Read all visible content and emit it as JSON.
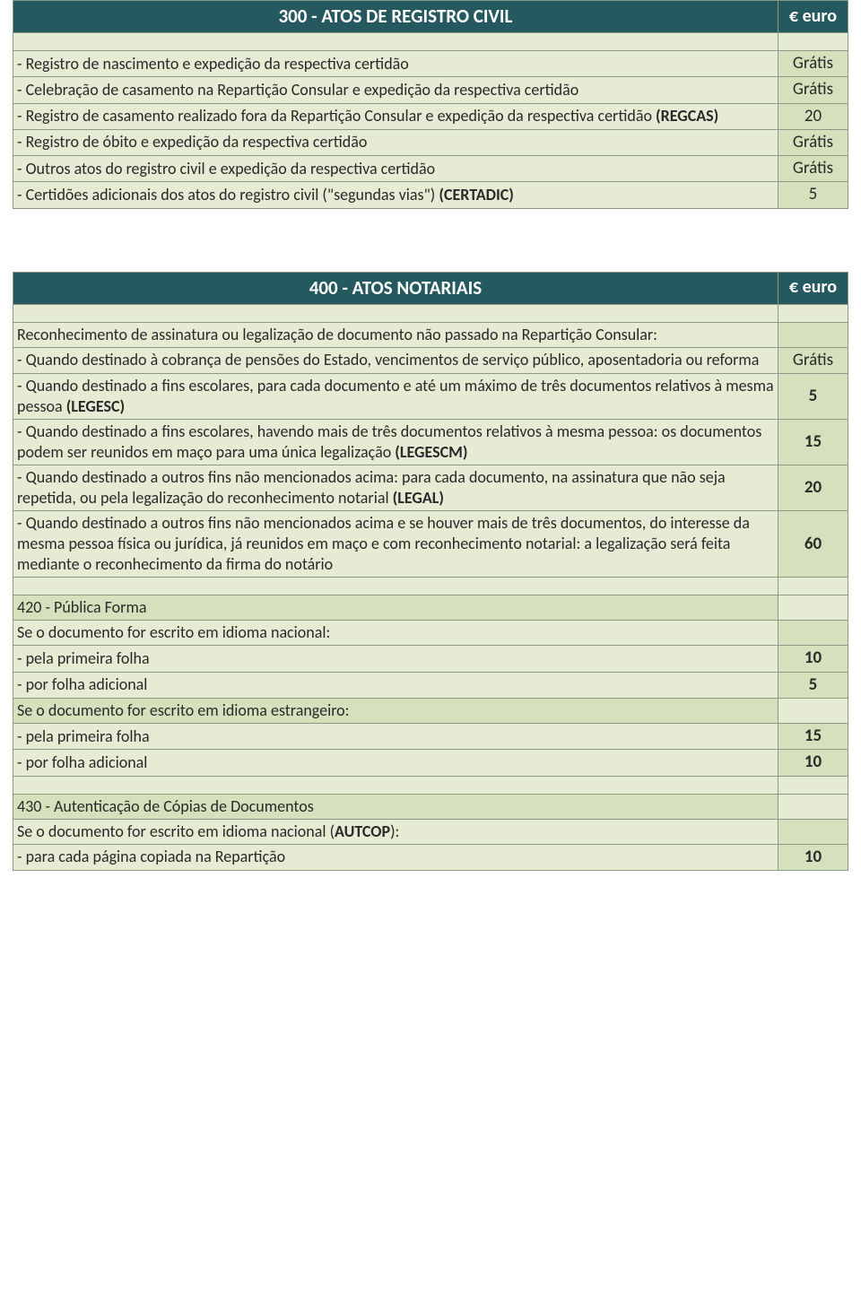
{
  "t300": {
    "title": "300 - ATOS DE REGISTRO CIVIL",
    "currency": "€ euro",
    "rows": [
      {
        "desc": "- Registro de nascimento e expedição da respectiva certidão",
        "val": "Grátis"
      },
      {
        "desc": "- Celebração de casamento na Repartição Consular e expedição da respectiva certidão",
        "val": "Grátis"
      },
      {
        "desc_pre": "- Registro de casamento realizado fora da Repartição Consular e expedição da respectiva certidão ",
        "desc_b": "(REGCAS)",
        "val": "20"
      },
      {
        "desc": "- Registro de óbito e expedição da respectiva certidão",
        "val": "Grátis"
      },
      {
        "desc": "- Outros atos do registro civil e expedição da respectiva certidão",
        "val": "Grátis"
      },
      {
        "desc_pre": "- Certidões adicionais dos atos do registro civil (\"segundas vias\") ",
        "desc_b": "(CERTADIC)",
        "val": "5"
      }
    ]
  },
  "t400": {
    "title": "400 - ATOS NOTARIAIS",
    "currency": "€ euro",
    "intro": "Reconhecimento de assinatura ou legalização de documento não passado na Repartição Consular:",
    "rows": [
      {
        "desc": "- Quando destinado à cobrança de pensões do Estado, vencimentos de serviço público, aposentadoria ou reforma",
        "val": "Grátis"
      },
      {
        "desc_pre": "- Quando destinado a fins escolares, para cada documento e até um máximo de três documentos relativos à mesma pessoa ",
        "desc_b": "(LEGESC)",
        "val": "5"
      },
      {
        "desc_pre": "- Quando destinado a fins escolares, havendo mais de três documentos relativos à mesma pessoa: os documentos podem ser reunidos em maço para uma única legalização ",
        "desc_b": "(LEGESCM)",
        "val": "15"
      },
      {
        "desc_pre": "- Quando destinado a outros fins não mencionados acima: para cada documento, na assinatura que não seja repetida, ou pela legalização do reconhecimento notarial ",
        "desc_b": "(LEGAL)",
        "val": "20"
      },
      {
        "desc": "- Quando destinado a outros fins não mencionados acima e se houver mais de três documentos, do interesse da mesma pessoa física ou jurídica, já reunidos em maço e com reconhecimento notarial: a legalização será feita mediante o reconhecimento da firma do notário",
        "val": "60"
      }
    ],
    "s420": {
      "heading": "420 - Pública Forma",
      "nat_label": "Se o documento for escrito em idioma nacional:",
      "r1": {
        "desc": "- pela primeira folha",
        "val": "10"
      },
      "r2": {
        "desc": "- por folha adicional",
        "val": "5"
      },
      "for_label": "Se o documento for escrito em idioma estrangeiro:",
      "r3": {
        "desc": "- pela primeira folha",
        "val": "15"
      },
      "r4": {
        "desc": "- por folha adicional",
        "val": "10"
      }
    },
    "s430": {
      "heading": "430 - Autenticação de Cópias de Documentos",
      "nat_pre": "Se o documento for escrito em idioma nacional (",
      "nat_b": "AUTCOP",
      "nat_post": "):",
      "r1": {
        "desc": "- para cada página copiada na Repartição",
        "val": "10"
      }
    }
  }
}
